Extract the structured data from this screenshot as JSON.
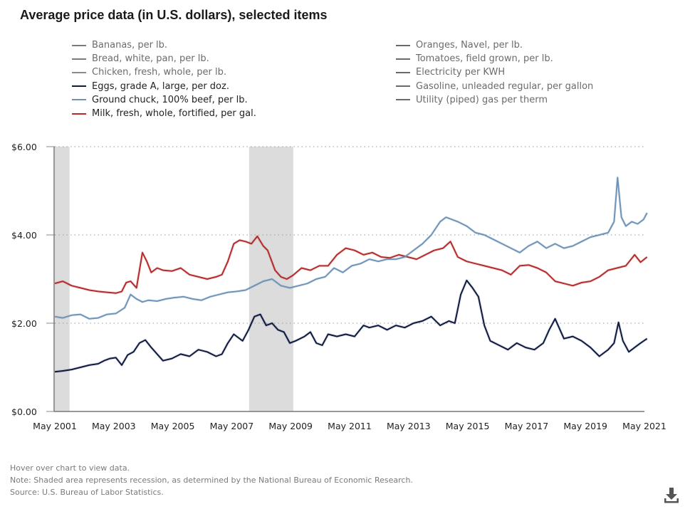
{
  "title": "Average price data (in U.S. dollars), selected items",
  "legend": {
    "left": [
      {
        "label": "Bananas, per lb.",
        "color": "#7a7a7a",
        "active": false
      },
      {
        "label": "Bread, white, pan, per lb.",
        "color": "#7a7a7a",
        "active": false
      },
      {
        "label": "Chicken, fresh, whole, per lb.",
        "color": "#8a8a8a",
        "active": false
      },
      {
        "label": "Eggs, grade A, large, per doz.",
        "color": "#0f1a40",
        "active": true
      },
      {
        "label": "Ground chuck, 100% beef, per lb.",
        "color": "#6f93b8",
        "active": true
      },
      {
        "label": "Milk, fresh, whole, fortified, per gal.",
        "color": "#b52a2a",
        "active": true
      }
    ],
    "right": [
      {
        "label": "Oranges, Navel, per lb.",
        "color": "#6a6a6a",
        "active": false
      },
      {
        "label": "Tomatoes, field grown, per lb.",
        "color": "#6a6a6a",
        "active": false
      },
      {
        "label": "Electricity per KWH",
        "color": "#6a6a6a",
        "active": false
      },
      {
        "label": "Gasoline, unleaded regular, per gallon",
        "color": "#6a6a6a",
        "active": false
      },
      {
        "label": "Utility (piped) gas per therm",
        "color": "#6a6a6a",
        "active": false
      }
    ]
  },
  "footnotes": {
    "hover": "Hover over chart to view data.",
    "note": "Note: Shaded area represents recession, as determined by the National Bureau of Economic Research.",
    "source": "Source: U.S. Bureau of Labor Statistics."
  },
  "icons": {
    "download": "download-icon"
  },
  "chart_data": {
    "type": "line",
    "title": "Average price data (in U.S. dollars), selected items",
    "xlabel": "",
    "ylabel": "",
    "x_range": [
      2001.33,
      2021.42
    ],
    "ylim": [
      0,
      6
    ],
    "y_ticks": [
      0,
      2,
      4,
      6
    ],
    "y_tick_labels": [
      "$0.00",
      "$2.00",
      "$4.00",
      "$6.00"
    ],
    "x_ticks": [
      2001.33,
      2003.33,
      2005.33,
      2007.33,
      2009.33,
      2011.33,
      2013.33,
      2015.33,
      2017.33,
      2019.33,
      2021.33
    ],
    "x_tick_labels": [
      "May 2001",
      "May 2003",
      "May 2005",
      "May 2007",
      "May 2009",
      "May 2011",
      "May 2013",
      "May 2015",
      "May 2017",
      "May 2019",
      "May 2021"
    ],
    "grid": "horizontal-dotted",
    "legend_position": "top",
    "recessions": [
      {
        "start": 2001.17,
        "end": 2001.83
      },
      {
        "start": 2007.92,
        "end": 2009.42
      }
    ],
    "series": [
      {
        "name": "Milk, fresh, whole, fortified, per gal.",
        "color": "#b52a2a",
        "x": [
          2001.33,
          2001.6,
          2001.9,
          2002.2,
          2002.5,
          2002.8,
          2003.1,
          2003.4,
          2003.6,
          2003.75,
          2003.9,
          2004.1,
          2004.3,
          2004.45,
          2004.6,
          2004.8,
          2005.0,
          2005.3,
          2005.6,
          2005.9,
          2006.2,
          2006.5,
          2006.8,
          2007.0,
          2007.2,
          2007.4,
          2007.6,
          2007.8,
          2008.0,
          2008.2,
          2008.4,
          2008.55,
          2008.8,
          2009.0,
          2009.2,
          2009.4,
          2009.7,
          2010.0,
          2010.3,
          2010.6,
          2010.9,
          2011.2,
          2011.5,
          2011.8,
          2012.1,
          2012.4,
          2012.7,
          2013.0,
          2013.3,
          2013.6,
          2013.9,
          2014.2,
          2014.5,
          2014.75,
          2015.0,
          2015.3,
          2015.6,
          2015.9,
          2016.2,
          2016.5,
          2016.8,
          2017.1,
          2017.4,
          2017.7,
          2018.0,
          2018.3,
          2018.6,
          2018.9,
          2019.2,
          2019.5,
          2019.8,
          2020.1,
          2020.4,
          2020.7,
          2021.0,
          2021.2,
          2021.42
        ],
        "values": [
          2.9,
          2.95,
          2.85,
          2.8,
          2.75,
          2.72,
          2.7,
          2.68,
          2.72,
          2.92,
          2.95,
          2.8,
          3.6,
          3.4,
          3.15,
          3.25,
          3.2,
          3.18,
          3.25,
          3.1,
          3.05,
          3.0,
          3.05,
          3.1,
          3.4,
          3.8,
          3.88,
          3.85,
          3.8,
          3.97,
          3.75,
          3.65,
          3.2,
          3.05,
          3.0,
          3.08,
          3.25,
          3.2,
          3.3,
          3.3,
          3.55,
          3.7,
          3.65,
          3.55,
          3.6,
          3.5,
          3.48,
          3.55,
          3.5,
          3.45,
          3.55,
          3.65,
          3.7,
          3.85,
          3.5,
          3.4,
          3.35,
          3.3,
          3.25,
          3.2,
          3.1,
          3.3,
          3.32,
          3.25,
          3.15,
          2.95,
          2.9,
          2.85,
          2.92,
          2.95,
          3.05,
          3.2,
          3.25,
          3.3,
          3.55,
          3.38,
          3.5
        ]
      },
      {
        "name": "Ground chuck, 100% beef, per lb.",
        "color": "#6f93b8",
        "x": [
          2001.33,
          2001.6,
          2001.9,
          2002.2,
          2002.5,
          2002.8,
          2003.1,
          2003.4,
          2003.7,
          2003.9,
          2004.1,
          2004.3,
          2004.5,
          2004.8,
          2005.1,
          2005.4,
          2005.7,
          2006.0,
          2006.3,
          2006.6,
          2006.9,
          2007.2,
          2007.5,
          2007.8,
          2008.1,
          2008.4,
          2008.7,
          2009.0,
          2009.3,
          2009.6,
          2009.9,
          2010.2,
          2010.5,
          2010.8,
          2011.1,
          2011.4,
          2011.7,
          2012.0,
          2012.3,
          2012.6,
          2012.9,
          2013.2,
          2013.5,
          2013.8,
          2014.1,
          2014.4,
          2014.6,
          2014.8,
          2015.0,
          2015.3,
          2015.6,
          2015.9,
          2016.2,
          2016.5,
          2016.8,
          2017.1,
          2017.4,
          2017.7,
          2018.0,
          2018.3,
          2018.6,
          2018.9,
          2019.2,
          2019.5,
          2019.8,
          2020.1,
          2020.3,
          2020.42,
          2020.55,
          2020.7,
          2020.9,
          2021.1,
          2021.3,
          2021.42
        ],
        "values": [
          2.15,
          2.12,
          2.18,
          2.2,
          2.1,
          2.12,
          2.2,
          2.22,
          2.35,
          2.65,
          2.55,
          2.48,
          2.52,
          2.5,
          2.55,
          2.58,
          2.6,
          2.55,
          2.52,
          2.6,
          2.65,
          2.7,
          2.72,
          2.75,
          2.85,
          2.95,
          3.0,
          2.85,
          2.8,
          2.85,
          2.9,
          3.0,
          3.05,
          3.25,
          3.15,
          3.3,
          3.35,
          3.45,
          3.4,
          3.45,
          3.45,
          3.5,
          3.65,
          3.8,
          4.0,
          4.3,
          4.4,
          4.35,
          4.3,
          4.2,
          4.05,
          4.0,
          3.9,
          3.8,
          3.7,
          3.6,
          3.75,
          3.85,
          3.7,
          3.8,
          3.7,
          3.75,
          3.85,
          3.95,
          4.0,
          4.05,
          4.3,
          5.3,
          4.4,
          4.2,
          4.3,
          4.25,
          4.35,
          4.5
        ]
      },
      {
        "name": "Eggs, grade A, large, per doz.",
        "color": "#0f1a40",
        "x": [
          2001.33,
          2001.6,
          2001.9,
          2002.2,
          2002.5,
          2002.8,
          2003.0,
          2003.2,
          2003.4,
          2003.6,
          2003.8,
          2004.0,
          2004.2,
          2004.4,
          2004.6,
          2004.8,
          2005.0,
          2005.3,
          2005.6,
          2005.9,
          2006.2,
          2006.5,
          2006.8,
          2007.0,
          2007.2,
          2007.4,
          2007.7,
          2007.9,
          2008.1,
          2008.3,
          2008.5,
          2008.7,
          2008.9,
          2009.1,
          2009.3,
          2009.5,
          2009.8,
          2010.0,
          2010.2,
          2010.4,
          2010.6,
          2010.9,
          2011.2,
          2011.5,
          2011.8,
          2012.0,
          2012.3,
          2012.6,
          2012.9,
          2013.2,
          2013.5,
          2013.8,
          2014.1,
          2014.4,
          2014.7,
          2014.9,
          2015.1,
          2015.3,
          2015.5,
          2015.7,
          2015.9,
          2016.1,
          2016.4,
          2016.7,
          2017.0,
          2017.3,
          2017.6,
          2017.9,
          2018.1,
          2018.3,
          2018.6,
          2018.9,
          2019.2,
          2019.5,
          2019.8,
          2020.1,
          2020.3,
          2020.45,
          2020.6,
          2020.8,
          2021.0,
          2021.2,
          2021.42
        ],
        "values": [
          0.9,
          0.92,
          0.95,
          1.0,
          1.05,
          1.08,
          1.15,
          1.2,
          1.22,
          1.05,
          1.28,
          1.35,
          1.55,
          1.62,
          1.45,
          1.3,
          1.15,
          1.2,
          1.3,
          1.25,
          1.4,
          1.35,
          1.25,
          1.3,
          1.55,
          1.75,
          1.6,
          1.85,
          2.15,
          2.2,
          1.95,
          2.0,
          1.85,
          1.8,
          1.55,
          1.6,
          1.7,
          1.8,
          1.55,
          1.5,
          1.75,
          1.7,
          1.75,
          1.7,
          1.95,
          1.9,
          1.95,
          1.85,
          1.95,
          1.9,
          2.0,
          2.05,
          2.15,
          1.95,
          2.05,
          2.0,
          2.65,
          2.97,
          2.8,
          2.6,
          1.95,
          1.6,
          1.5,
          1.4,
          1.55,
          1.45,
          1.4,
          1.55,
          1.85,
          2.1,
          1.65,
          1.7,
          1.6,
          1.45,
          1.25,
          1.4,
          1.55,
          2.02,
          1.6,
          1.35,
          1.45,
          1.55,
          1.65
        ]
      }
    ]
  }
}
